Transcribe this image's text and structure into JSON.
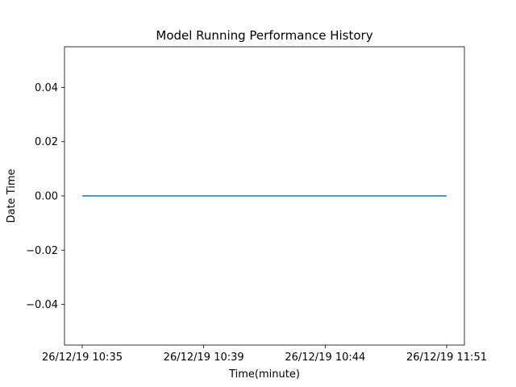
{
  "chart_data": {
    "type": "line",
    "title": "Model Running Performance History",
    "xlabel": "Time(minute)",
    "ylabel": "Date Time",
    "categories": [
      "26/12/19 10:35",
      "26/12/19 10:39",
      "26/12/19 10:44",
      "26/12/19 11:51"
    ],
    "series": [
      {
        "values": [
          0,
          0,
          0,
          0
        ],
        "color": "#1f77b4"
      }
    ],
    "ylim": [
      -0.055,
      0.055
    ],
    "yticks": [
      {
        "value": -0.04,
        "label": "−0.04"
      },
      {
        "value": -0.02,
        "label": "−0.02"
      },
      {
        "value": 0.0,
        "label": "0.00"
      },
      {
        "value": 0.02,
        "label": "0.02"
      },
      {
        "value": 0.04,
        "label": "0.04"
      }
    ],
    "grid": false,
    "legend": "none"
  }
}
